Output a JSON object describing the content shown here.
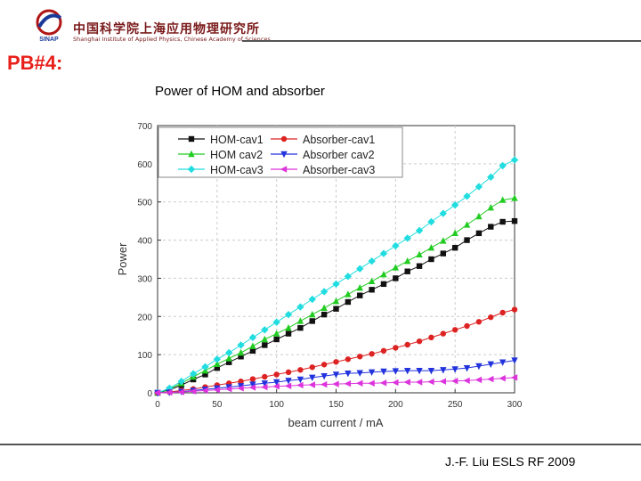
{
  "header": {
    "logo_text": "SINAP",
    "institute_cn": "中国科学院上海应用物理研究所",
    "institute_en": "Shanghai Institute of Applied Physics, Chinese Academy of Sciences"
  },
  "slide_title": "PB#4:",
  "footer": {
    "text": "J.-F. Liu ESLS RF 2009"
  },
  "colors": {
    "title": "#e8201b",
    "HOM-cav1": "#111111",
    "HOM cav2": "#22cc22",
    "HOM-cav3": "#22dde0",
    "Absorber-cav1": "#dd2222",
    "Absorber cav2": "#2233dd",
    "Absorber-cav3": "#dd33dd"
  },
  "chart_data": {
    "type": "line",
    "title": "Power of HOM and absorber",
    "xlabel": "beam current / mA",
    "ylabel": "Power",
    "xlim": [
      0,
      300
    ],
    "ylim": [
      0,
      700
    ],
    "xticks": [
      0,
      50,
      100,
      150,
      200,
      250,
      300
    ],
    "yticks": [
      0,
      100,
      200,
      300,
      400,
      500,
      600,
      700
    ],
    "grid": true,
    "legend_position": "top-left",
    "x": [
      0,
      10,
      20,
      30,
      40,
      50,
      60,
      70,
      80,
      90,
      100,
      110,
      120,
      130,
      140,
      150,
      160,
      170,
      180,
      190,
      200,
      210,
      220,
      230,
      240,
      250,
      260,
      270,
      280,
      290,
      300
    ],
    "series": [
      {
        "name": "HOM-cav1",
        "marker": "square",
        "values": [
          0,
          8,
          20,
          35,
          48,
          65,
          80,
          95,
          110,
          125,
          140,
          155,
          170,
          188,
          205,
          220,
          238,
          255,
          270,
          285,
          300,
          318,
          332,
          350,
          365,
          380,
          400,
          418,
          435,
          448,
          450
        ]
      },
      {
        "name": "HOM cav2",
        "marker": "triangle-up",
        "values": [
          0,
          10,
          25,
          42,
          58,
          75,
          90,
          105,
          122,
          140,
          155,
          170,
          188,
          205,
          222,
          240,
          258,
          275,
          292,
          310,
          328,
          345,
          362,
          380,
          398,
          418,
          440,
          462,
          485,
          505,
          510
        ]
      },
      {
        "name": "HOM-cav3",
        "marker": "diamond",
        "values": [
          0,
          12,
          30,
          50,
          68,
          88,
          105,
          125,
          145,
          165,
          185,
          205,
          225,
          245,
          265,
          285,
          305,
          325,
          345,
          365,
          385,
          405,
          425,
          448,
          470,
          492,
          515,
          540,
          565,
          595,
          610
        ]
      },
      {
        "name": "Absorber-cav1",
        "marker": "circle",
        "values": [
          0,
          2,
          6,
          10,
          15,
          20,
          25,
          30,
          36,
          42,
          48,
          54,
          60,
          67,
          74,
          81,
          88,
          95,
          102,
          110,
          118,
          126,
          135,
          145,
          155,
          165,
          175,
          186,
          198,
          210,
          218
        ]
      },
      {
        "name": "Absorber cav2",
        "marker": "triangle-down",
        "values": [
          0,
          1,
          3,
          6,
          9,
          12,
          15,
          18,
          22,
          25,
          28,
          32,
          35,
          40,
          44,
          48,
          51,
          52,
          54,
          56,
          57,
          58,
          58,
          58,
          60,
          62,
          65,
          70,
          75,
          80,
          85
        ]
      },
      {
        "name": "Absorber-cav3",
        "marker": "triangle-left",
        "values": [
          0,
          1,
          2,
          4,
          6,
          8,
          10,
          12,
          14,
          15,
          17,
          18,
          20,
          21,
          22,
          23,
          24,
          25,
          25,
          26,
          27,
          28,
          28,
          29,
          30,
          31,
          32,
          34,
          36,
          38,
          40
        ]
      }
    ]
  }
}
